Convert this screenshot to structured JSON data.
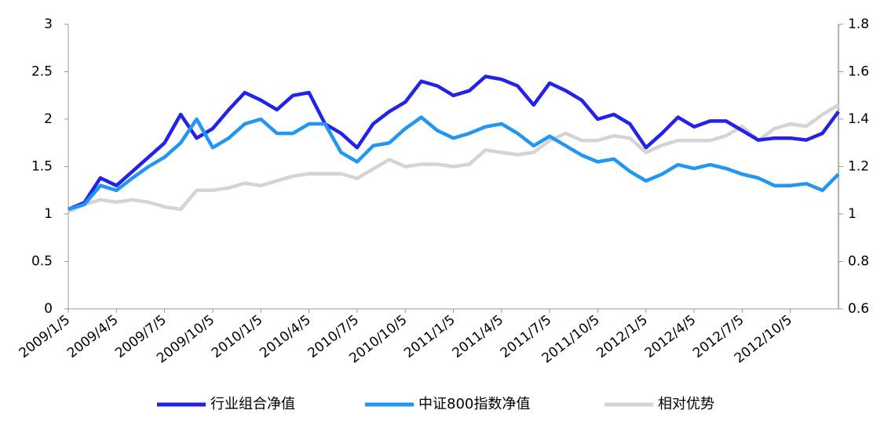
{
  "chart_data": {
    "type": "line",
    "categories": [
      "2009/1/5",
      null,
      null,
      "2009/4/5",
      null,
      null,
      "2009/7/5",
      null,
      null,
      "2009/10/5",
      null,
      null,
      "2010/1/5",
      null,
      null,
      "2010/4/5",
      null,
      null,
      "2010/7/5",
      null,
      null,
      "2010/10/5",
      null,
      null,
      "2011/1/5",
      null,
      null,
      "2011/4/5",
      null,
      null,
      "2011/7/5",
      null,
      null,
      "2011/10/5",
      null,
      null,
      "2012/1/5",
      null,
      null,
      "2012/4/5",
      null,
      null,
      "2012/7/5",
      null,
      null,
      "2012/10/5",
      null,
      null,
      null
    ],
    "series": [
      {
        "name": "行业组合净值",
        "color": "#2323e8",
        "values": [
          1.05,
          1.12,
          1.38,
          1.3,
          1.45,
          1.6,
          1.75,
          2.05,
          1.8,
          1.9,
          2.1,
          2.28,
          2.2,
          2.1,
          2.25,
          2.28,
          1.95,
          1.85,
          1.7,
          1.95,
          2.08,
          2.18,
          2.4,
          2.35,
          2.25,
          2.3,
          2.45,
          2.42,
          2.35,
          2.15,
          2.38,
          2.3,
          2.2,
          2.0,
          2.05,
          1.95,
          1.7,
          1.85,
          2.02,
          1.92,
          1.98,
          1.98,
          1.88,
          1.78,
          1.8,
          1.8,
          1.78,
          1.85,
          2.08
        ]
      },
      {
        "name": "中证800指数净值",
        "color": "#2196f3",
        "values": [
          1.05,
          1.1,
          1.3,
          1.25,
          1.38,
          1.5,
          1.6,
          1.75,
          2.0,
          1.7,
          1.8,
          1.95,
          2.0,
          1.85,
          1.85,
          1.95,
          1.95,
          1.65,
          1.55,
          1.72,
          1.75,
          1.9,
          2.02,
          1.88,
          1.8,
          1.85,
          1.92,
          1.95,
          1.85,
          1.72,
          1.82,
          1.72,
          1.62,
          1.55,
          1.58,
          1.45,
          1.35,
          1.42,
          1.52,
          1.48,
          1.52,
          1.48,
          1.42,
          1.38,
          1.3,
          1.3,
          1.32,
          1.25,
          1.42
        ]
      },
      {
        "name": "相对优势",
        "color": "#d4d4d4",
        "axis": "y2",
        "values": [
          1.01,
          1.04,
          1.06,
          1.05,
          1.06,
          1.05,
          1.03,
          1.02,
          1.1,
          1.1,
          1.11,
          1.13,
          1.12,
          1.14,
          1.16,
          1.17,
          1.17,
          1.17,
          1.15,
          1.19,
          1.23,
          1.2,
          1.21,
          1.21,
          1.2,
          1.21,
          1.27,
          1.26,
          1.25,
          1.26,
          1.31,
          1.34,
          1.31,
          1.31,
          1.33,
          1.32,
          1.26,
          1.29,
          1.31,
          1.31,
          1.31,
          1.33,
          1.37,
          1.31,
          1.36,
          1.38,
          1.37,
          1.42,
          1.46
        ]
      }
    ],
    "ylim": [
      0,
      3
    ],
    "yticks": [
      0,
      0.5,
      1,
      1.5,
      2,
      2.5,
      3
    ],
    "y2lim": [
      0.6,
      1.8
    ],
    "y2ticks": [
      0.6,
      0.8,
      1,
      1.2,
      1.4,
      1.6,
      1.8
    ],
    "legend": "bottom"
  }
}
